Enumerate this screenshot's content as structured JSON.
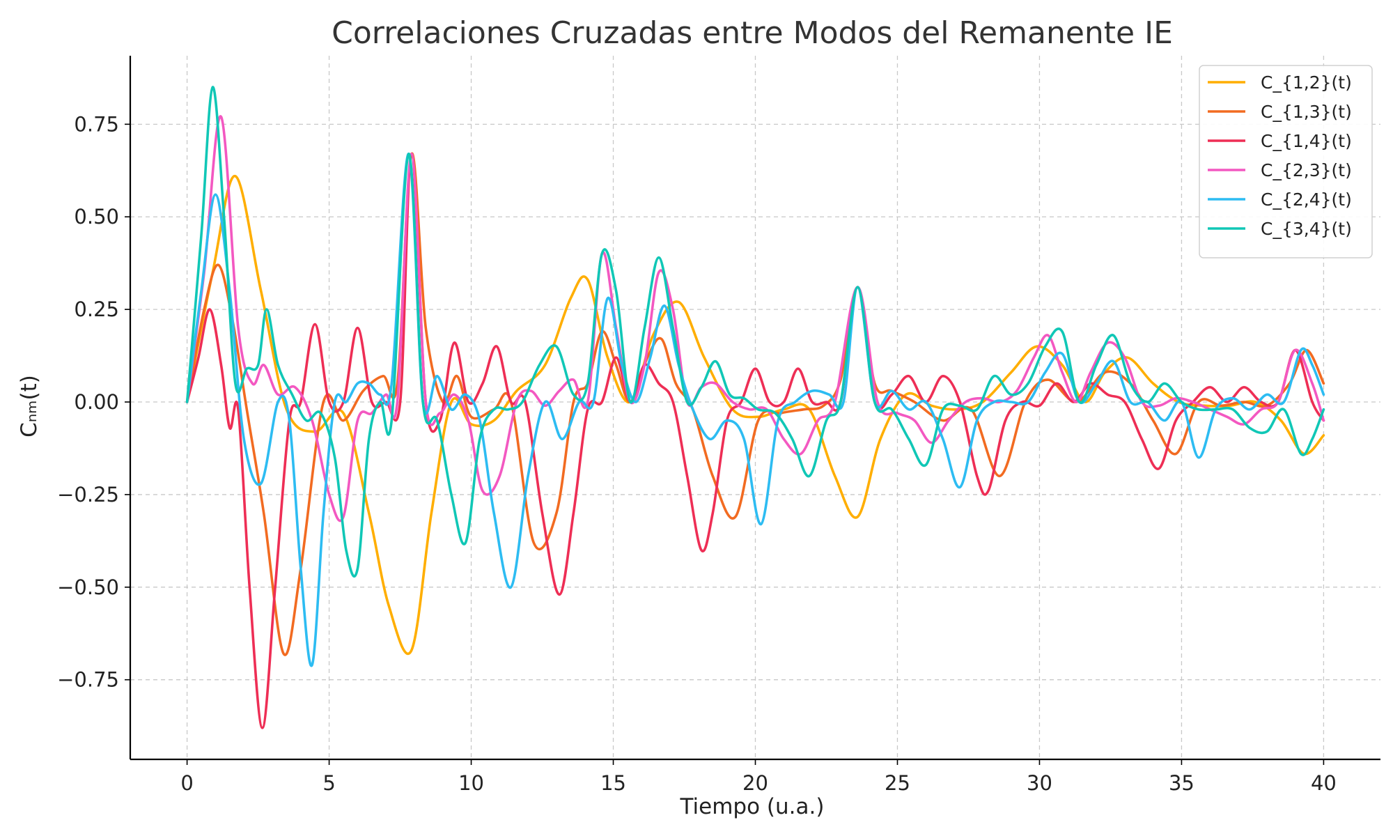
{
  "chart_data": {
    "type": "line",
    "title": "Correlaciones Cruzadas entre Modos del Remanente IE",
    "xlabel": "Tiempo (u.a.)",
    "ylabel": "Cₙₘ(t)",
    "xlim": [
      -2,
      42
    ],
    "ylim": [
      -0.965,
      0.935
    ],
    "xticks": [
      0,
      5,
      10,
      15,
      20,
      25,
      30,
      35,
      40
    ],
    "xtick_labels": [
      "0",
      "5",
      "10",
      "15",
      "20",
      "25",
      "30",
      "35",
      "40"
    ],
    "yticks": [
      -0.75,
      -0.5,
      -0.25,
      0,
      0.25,
      0.5,
      0.75
    ],
    "ytick_labels": [
      "−0.75",
      "−0.50",
      "−0.25",
      "0.00",
      "0.25",
      "0.50",
      "0.75"
    ],
    "grid": true,
    "legend_position": "top-right",
    "series": [
      {
        "name": "C_{1,2}(t)",
        "color": "#FFAE00",
        "x": [
          0,
          0.9,
          1.7,
          2.6,
          3.5,
          4.5,
          5.5,
          6.4,
          7.1,
          7.9,
          8.6,
          9.3,
          10.0,
          10.8,
          11.6,
          12.6,
          13.5,
          14.1,
          14.8,
          15.6,
          16.4,
          17.3,
          18.2,
          19.2,
          20.1,
          21.0,
          21.9,
          22.8,
          23.6,
          24.4,
          25.3,
          26.2,
          27.1,
          28.0,
          29.0,
          29.9,
          30.8,
          31.6,
          32.3,
          33.1,
          34.0,
          34.9,
          35.8,
          36.7,
          37.6,
          38.5,
          39.3,
          40.0
        ],
        "y": [
          0,
          0.35,
          0.61,
          0.3,
          -0.02,
          -0.08,
          -0.03,
          -0.3,
          -0.55,
          -0.67,
          -0.3,
          0.0,
          -0.06,
          -0.05,
          0.03,
          0.1,
          0.28,
          0.33,
          0.12,
          0.0,
          0.18,
          0.27,
          0.12,
          -0.02,
          -0.04,
          -0.02,
          -0.02,
          -0.2,
          -0.31,
          -0.1,
          0.02,
          -0.01,
          -0.02,
          0.0,
          0.08,
          0.15,
          0.1,
          0.0,
          0.08,
          0.12,
          0.05,
          0.0,
          -0.01,
          -0.01,
          0.0,
          -0.05,
          -0.14,
          -0.09
        ]
      },
      {
        "name": "C_{1,3}(t)",
        "color": "#F26B21",
        "x": [
          0,
          0.6,
          1.1,
          1.6,
          2.1,
          2.7,
          3.4,
          4.0,
          4.8,
          5.5,
          6.2,
          6.9,
          7.4,
          7.9,
          8.4,
          9.0,
          9.5,
          10.0,
          10.8,
          11.4,
          12.2,
          13.0,
          13.6,
          14.1,
          14.6,
          15.1,
          15.6,
          16.2,
          16.7,
          17.2,
          17.8,
          18.5,
          19.3,
          20.1,
          20.9,
          21.7,
          22.4,
          23.0,
          23.6,
          24.2,
          24.8,
          25.6,
          26.6,
          27.6,
          28.6,
          29.5,
          30.3,
          31.3,
          32.3,
          33.2,
          34.0,
          34.8,
          35.6,
          36.4,
          37.2,
          38.0,
          38.8,
          39.4,
          40.0
        ],
        "y": [
          0,
          0.25,
          0.37,
          0.22,
          -0.02,
          -0.3,
          -0.68,
          -0.45,
          0.0,
          -0.05,
          0.03,
          0.07,
          0.05,
          0.67,
          0.2,
          0.0,
          0.07,
          -0.04,
          -0.02,
          0.0,
          -0.38,
          -0.3,
          0.0,
          0.05,
          0.19,
          0.1,
          0.0,
          0.12,
          0.17,
          0.05,
          -0.02,
          -0.2,
          -0.31,
          -0.05,
          -0.03,
          -0.02,
          -0.01,
          0.06,
          0.31,
          0.05,
          0.03,
          0.0,
          -0.05,
          -0.02,
          -0.2,
          0.0,
          0.06,
          0.0,
          0.08,
          0.05,
          -0.05,
          -0.14,
          0.0,
          -0.01,
          0.0,
          -0.01,
          0.05,
          0.14,
          0.05
        ]
      },
      {
        "name": "C_{1,4}(t)",
        "color": "#EE2E55",
        "x": [
          0,
          0.4,
          0.8,
          1.2,
          1.5,
          1.8,
          2.2,
          2.65,
          3.1,
          3.6,
          4.0,
          4.5,
          5.0,
          5.5,
          6.0,
          6.5,
          7.0,
          7.5,
          7.9,
          8.4,
          8.9,
          9.4,
          9.9,
          10.4,
          10.9,
          11.4,
          11.9,
          12.5,
          13.1,
          13.6,
          14.1,
          14.6,
          15.1,
          15.6,
          16.1,
          16.6,
          17.1,
          17.6,
          18.1,
          18.5,
          19.0,
          19.5,
          20.0,
          20.5,
          21.0,
          21.5,
          22.0,
          22.5,
          23.0,
          23.6,
          24.2,
          24.8,
          25.4,
          26.0,
          26.6,
          27.2,
          27.8,
          28.2,
          28.8,
          29.4,
          30.0,
          30.6,
          31.2,
          31.8,
          32.4,
          33.0,
          33.6,
          34.2,
          34.8,
          35.4,
          36.0,
          36.6,
          37.2,
          37.8,
          38.4,
          39.0,
          39.6,
          40.0
        ],
        "y": [
          0,
          0.12,
          0.25,
          0.1,
          -0.07,
          -0.02,
          -0.5,
          -0.88,
          -0.5,
          -0.05,
          0.0,
          0.21,
          0.0,
          0.0,
          0.2,
          0.0,
          0.0,
          0.0,
          0.67,
          0.0,
          -0.05,
          0.16,
          0.0,
          0.05,
          0.15,
          0.0,
          0.0,
          -0.3,
          -0.52,
          -0.3,
          -0.02,
          0.0,
          0.12,
          0.0,
          0.1,
          0.05,
          0.0,
          -0.2,
          -0.4,
          -0.3,
          -0.05,
          0.0,
          0.09,
          0.0,
          0.0,
          0.09,
          0.0,
          0.0,
          0.0,
          0.31,
          0.0,
          0.02,
          0.07,
          0.0,
          0.07,
          0.0,
          -0.2,
          -0.24,
          -0.05,
          0.0,
          -0.01,
          0.05,
          0.0,
          0.05,
          0.02,
          0.0,
          -0.1,
          -0.18,
          -0.05,
          0.0,
          0.04,
          0.0,
          0.04,
          0.0,
          0.0,
          0.14,
          0.0,
          -0.05
        ]
      },
      {
        "name": "C_{2,3}(t)",
        "color": "#F358C1",
        "x": [
          0,
          0.6,
          1.2,
          1.8,
          2.3,
          2.7,
          3.2,
          3.8,
          4.4,
          5.0,
          5.5,
          6.0,
          6.5,
          7.0,
          7.4,
          7.9,
          8.4,
          8.9,
          9.4,
          9.9,
          10.4,
          11.0,
          11.6,
          12.1,
          12.6,
          13.1,
          13.6,
          14.1,
          14.6,
          15.1,
          15.6,
          16.1,
          16.6,
          17.1,
          17.6,
          18.1,
          18.6,
          19.2,
          19.8,
          20.4,
          21.0,
          21.6,
          22.2,
          22.8,
          23.6,
          24.3,
          25.0,
          25.6,
          26.2,
          26.8,
          27.4,
          28.0,
          28.6,
          29.2,
          29.8,
          30.3,
          30.8,
          31.3,
          31.8,
          32.4,
          33.0,
          33.6,
          34.2,
          34.8,
          35.4,
          36.0,
          36.6,
          37.2,
          37.8,
          38.4,
          39.0,
          39.6,
          40.0
        ],
        "y": [
          0,
          0.35,
          0.77,
          0.2,
          0.05,
          0.1,
          0.02,
          0.04,
          -0.05,
          -0.25,
          -0.31,
          -0.05,
          -0.03,
          0.02,
          0.0,
          0.67,
          0.0,
          -0.03,
          0.02,
          -0.05,
          -0.24,
          -0.2,
          0.0,
          0.03,
          -0.01,
          0.03,
          0.06,
          0.0,
          0.4,
          0.2,
          0.0,
          0.1,
          0.35,
          0.25,
          0.0,
          0.04,
          0.05,
          0.0,
          -0.02,
          -0.02,
          -0.1,
          -0.14,
          -0.05,
          0.0,
          0.31,
          0.0,
          -0.03,
          -0.05,
          -0.11,
          -0.05,
          0.0,
          0.01,
          0.0,
          0.03,
          0.12,
          0.18,
          0.08,
          0.0,
          0.08,
          0.16,
          0.12,
          0.0,
          -0.01,
          0.01,
          0.0,
          -0.02,
          -0.04,
          -0.06,
          -0.02,
          0.0,
          0.14,
          0.05,
          -0.05
        ]
      },
      {
        "name": "C_{2,4}(t)",
        "color": "#2DBCF2",
        "x": [
          0,
          0.5,
          1.0,
          1.5,
          2.0,
          2.6,
          3.2,
          3.6,
          4.0,
          4.4,
          4.8,
          5.2,
          5.6,
          6.0,
          6.4,
          6.8,
          7.2,
          7.8,
          8.3,
          8.8,
          9.3,
          9.8,
          10.3,
          10.8,
          11.4,
          12.0,
          12.6,
          13.2,
          13.8,
          14.3,
          14.8,
          15.3,
          15.8,
          16.3,
          16.8,
          17.3,
          17.8,
          18.4,
          19.0,
          19.6,
          20.2,
          20.8,
          21.4,
          22.0,
          22.6,
          23.1,
          23.6,
          24.2,
          24.8,
          25.4,
          26.0,
          26.6,
          27.2,
          27.8,
          28.4,
          29.0,
          29.6,
          30.2,
          30.8,
          31.4,
          32.0,
          32.6,
          33.2,
          33.8,
          34.4,
          35.0,
          35.6,
          36.2,
          36.8,
          37.4,
          38.0,
          38.6,
          39.2,
          39.6,
          40.0
        ],
        "y": [
          0,
          0.3,
          0.56,
          0.3,
          -0.1,
          -0.22,
          0.0,
          -0.05,
          -0.45,
          -0.71,
          -0.3,
          0.0,
          0.0,
          0.05,
          0.05,
          0.02,
          0.05,
          0.67,
          0.0,
          0.07,
          -0.02,
          0.02,
          -0.05,
          -0.3,
          -0.5,
          -0.2,
          0.0,
          -0.1,
          0.0,
          0.0,
          0.28,
          0.1,
          0.0,
          0.12,
          0.26,
          0.1,
          -0.02,
          -0.1,
          -0.05,
          -0.1,
          -0.33,
          -0.05,
          0.0,
          0.03,
          0.02,
          0.0,
          0.31,
          0.0,
          0.03,
          -0.02,
          0.0,
          -0.1,
          -0.23,
          -0.05,
          0.0,
          0.0,
          0.0,
          0.08,
          0.13,
          0.0,
          0.05,
          0.11,
          0.0,
          0.0,
          -0.05,
          0.0,
          -0.15,
          -0.02,
          0.01,
          -0.02,
          0.02,
          0.0,
          0.14,
          0.1,
          0.02
        ]
      },
      {
        "name": "C_{3,4}(t)",
        "color": "#10C7B6",
        "x": [
          0,
          0.5,
          0.9,
          1.3,
          1.7,
          2.1,
          2.5,
          2.8,
          3.2,
          3.7,
          4.2,
          4.7,
          5.2,
          5.6,
          6.0,
          6.4,
          6.8,
          7.2,
          7.8,
          8.3,
          8.8,
          9.3,
          9.8,
          10.3,
          10.8,
          11.3,
          11.8,
          12.4,
          13.0,
          13.6,
          14.1,
          14.6,
          15.1,
          15.6,
          16.1,
          16.6,
          17.1,
          17.6,
          18.1,
          18.6,
          19.1,
          19.6,
          20.1,
          20.7,
          21.3,
          21.9,
          22.5,
          23.0,
          23.6,
          24.2,
          24.8,
          25.4,
          26.0,
          26.6,
          27.2,
          27.8,
          28.4,
          29.0,
          29.6,
          30.2,
          30.8,
          31.4,
          32.0,
          32.6,
          33.2,
          33.8,
          34.4,
          35.0,
          35.6,
          36.2,
          36.8,
          37.4,
          38.0,
          38.6,
          39.2,
          39.6,
          40.0
        ],
        "y": [
          0,
          0.45,
          0.85,
          0.5,
          0.05,
          0.09,
          0.1,
          0.25,
          0.1,
          0.02,
          -0.05,
          -0.03,
          -0.15,
          -0.4,
          -0.45,
          -0.1,
          0.0,
          -0.05,
          0.67,
          0.0,
          -0.05,
          -0.25,
          -0.38,
          -0.1,
          -0.02,
          -0.02,
          0.0,
          0.1,
          0.15,
          0.02,
          0.05,
          0.4,
          0.3,
          0.0,
          0.2,
          0.39,
          0.2,
          0.0,
          0.04,
          0.11,
          0.02,
          0.01,
          -0.02,
          -0.03,
          -0.1,
          -0.2,
          -0.05,
          0.0,
          0.31,
          0.0,
          -0.02,
          -0.1,
          -0.17,
          -0.02,
          -0.01,
          -0.02,
          0.07,
          0.02,
          0.05,
          0.15,
          0.19,
          0.0,
          0.1,
          0.18,
          0.05,
          0.0,
          0.05,
          0.0,
          -0.02,
          -0.02,
          -0.02,
          -0.07,
          -0.08,
          -0.02,
          -0.14,
          -0.1,
          -0.02
        ]
      }
    ]
  }
}
